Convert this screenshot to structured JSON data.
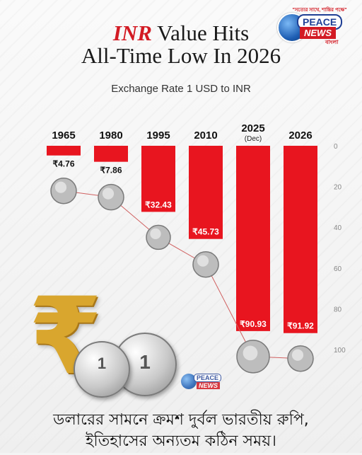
{
  "header": {
    "title_accent": "INR",
    "title_rest_line1": " Value Hits",
    "title_line2": "All-Time Low In 2026",
    "subtitle": "Exchange Rate 1 USD to INR"
  },
  "logo": {
    "tagline": "\"সত্যের সাথে, শান্তির পক্ষে\"",
    "peace": "PEACE",
    "news": "NEWS",
    "bangla": "বাংলা"
  },
  "coins": {
    "coin1_text": "1",
    "coin2_text": "1"
  },
  "caption": {
    "line1": "ডলারের সামনে ক্রমশ দুর্বল ভারতীয় রুপি,",
    "line2": "ইতিহাসের অন্যতম কঠিন সময়।"
  },
  "colors": {
    "bar": "#e8151f",
    "axis_text": "#888888",
    "label_text": "#ffffff",
    "accent": "#d31b24"
  },
  "chart_data": {
    "type": "bar",
    "categories": [
      "1965",
      "1980",
      "1995",
      "2010",
      "2025",
      "2026"
    ],
    "category_notes": [
      "",
      "",
      "",
      "",
      "(Dec)",
      ""
    ],
    "values": [
      4.76,
      7.86,
      32.43,
      45.73,
      90.93,
      91.92
    ],
    "value_labels": [
      "₹4.76",
      "₹7.86",
      "₹32.43",
      "₹45.73",
      "₹90.93",
      "₹91.92"
    ],
    "title": "Exchange Rate 1 USD to INR",
    "ylim": [
      0,
      100
    ],
    "yticks": [
      0,
      20,
      40,
      60,
      80,
      100
    ],
    "orientation": "downward",
    "grid": false,
    "legend": "none"
  }
}
